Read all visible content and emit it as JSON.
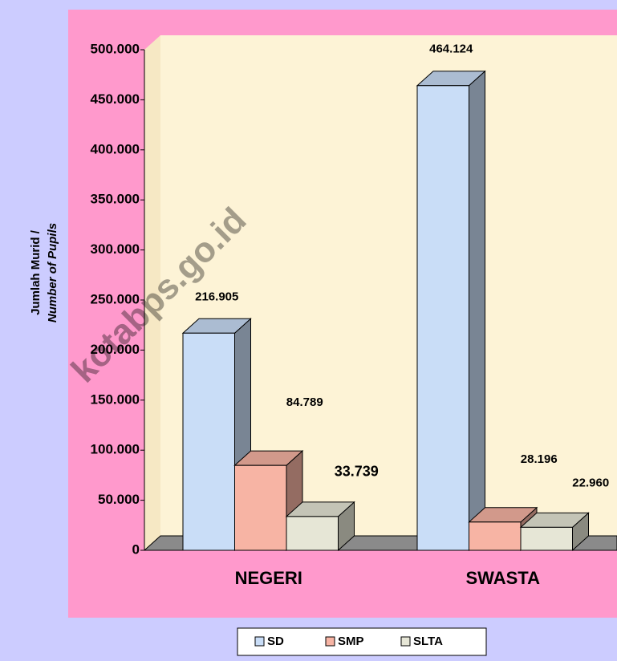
{
  "chart_data": {
    "type": "bar3d",
    "y_axis_label": [
      "Jumlah Murid /",
      "Number of Pupils"
    ],
    "watermark": "kotabps.go.id",
    "categories": [
      "NEGERI",
      "SWASTA"
    ],
    "series": [
      {
        "name": "SD",
        "color": "#c9ddf7",
        "values": [
          216905,
          464124
        ],
        "value_labels": [
          "216.905",
          "464.124"
        ]
      },
      {
        "name": "SMP",
        "color": "#f7b4a4",
        "values": [
          84789,
          28196
        ],
        "value_labels": [
          "84.789",
          "28.196"
        ]
      },
      {
        "name": "SLTA",
        "color": "#e6e6d6",
        "values": [
          33739,
          22960
        ],
        "value_labels": [
          "33.739",
          "22.960"
        ]
      }
    ],
    "ylim": [
      0,
      500000
    ],
    "yticks": [
      0,
      {
        "value": 50000,
        "label": "50.000"
      },
      {
        "value": 100000,
        "label": "100.000"
      },
      {
        "value": 150000,
        "label": "150.000"
      },
      {
        "value": 200000,
        "label": "200.000"
      },
      {
        "value": 250000,
        "label": "250.000"
      },
      {
        "value": 300000,
        "label": "300.000"
      },
      {
        "value": 350000,
        "label": "350.000"
      },
      {
        "value": 400000,
        "label": "400.000"
      },
      {
        "value": 450000,
        "label": "450.000"
      },
      {
        "value": 500000,
        "label": "500.000"
      }
    ],
    "legend": "bottom"
  }
}
